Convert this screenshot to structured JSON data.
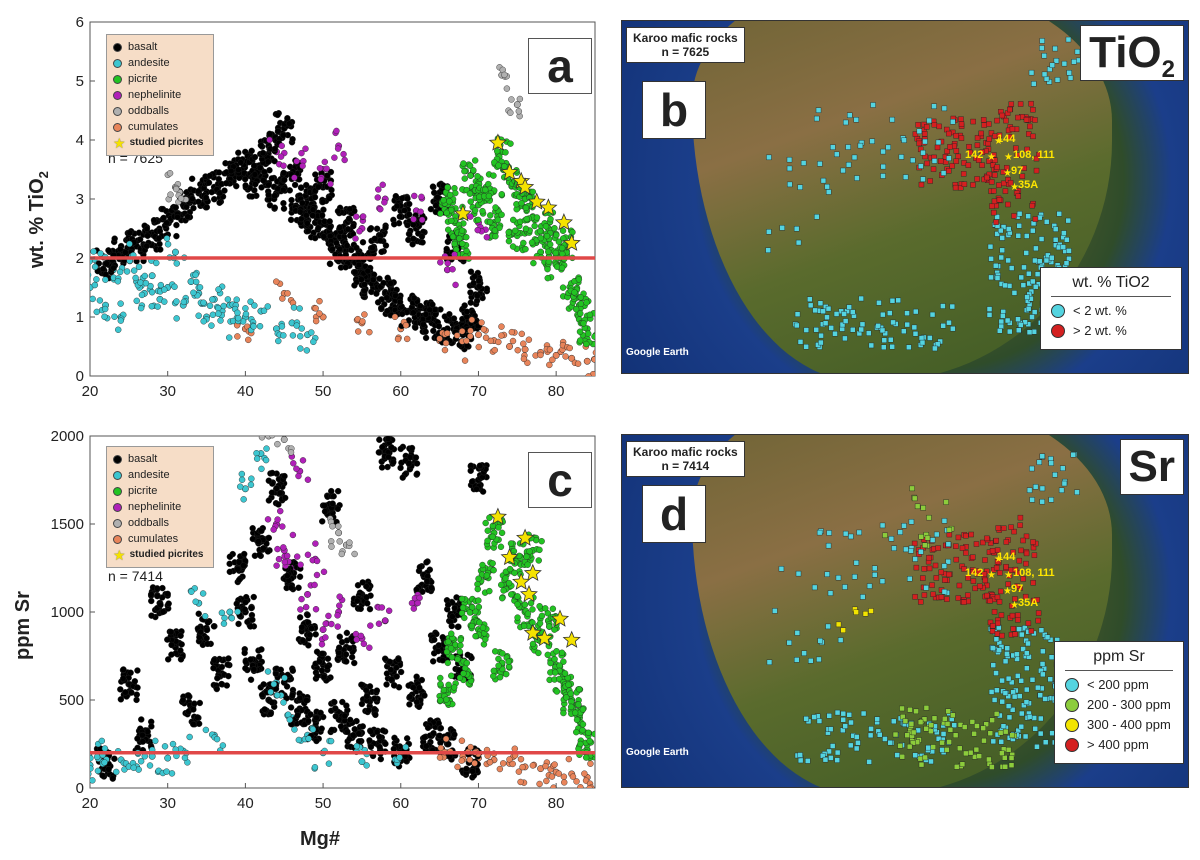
{
  "chart_data": [
    {
      "panel": "a",
      "type": "scatter",
      "xlabel": "",
      "ylabel": "wt. % TiO2",
      "xlim": [
        20,
        85
      ],
      "ylim": [
        0,
        6
      ],
      "xticks": [
        20,
        30,
        40,
        50,
        60,
        70,
        80
      ],
      "yticks": [
        0,
        1,
        2,
        3,
        4,
        5,
        6
      ],
      "reference_line_y": 2,
      "n_label": "n = 7625",
      "legend": [
        "basalt",
        "andesite",
        "picrite",
        "nephelinite",
        "oddballs",
        "cumulates",
        "studied picrites"
      ],
      "legend_placement": "top-left",
      "series": [
        {
          "name": "basalt",
          "color": "#000000",
          "x": [
            22,
            24,
            26,
            28,
            30,
            32,
            34,
            36,
            38,
            40,
            41,
            42,
            43,
            44,
            45,
            46,
            47,
            48,
            49,
            50,
            51,
            52,
            53,
            54,
            55,
            56,
            57,
            58,
            59,
            60,
            61,
            62,
            63,
            64,
            65,
            66,
            67,
            68,
            69,
            70
          ],
          "y": [
            1.9,
            2.1,
            2.2,
            2.4,
            2.6,
            2.9,
            3.1,
            3.2,
            3.4,
            3.6,
            3.3,
            3.5,
            3.9,
            3.1,
            4.2,
            3.4,
            2.8,
            3.0,
            2.6,
            3.2,
            2.4,
            2.1,
            2.6,
            2.0,
            1.8,
            1.6,
            2.3,
            1.4,
            1.2,
            2.8,
            1.1,
            2.5,
            1.0,
            0.9,
            3.0,
            0.8,
            2.2,
            0.7,
            1.0,
            1.5
          ]
        },
        {
          "name": "andesite",
          "color": "#3cc6d0",
          "x": [
            20,
            21,
            22,
            23,
            24,
            25,
            26,
            27,
            28,
            29,
            30,
            31,
            32,
            33,
            34,
            35,
            36,
            37,
            38,
            39,
            40,
            42,
            44,
            46,
            48
          ],
          "y": [
            1.5,
            1.9,
            1.2,
            1.8,
            1.0,
            2.0,
            1.6,
            1.4,
            1.7,
            1.3,
            1.5,
            2.1,
            1.2,
            1.6,
            1.4,
            1.0,
            1.3,
            1.1,
            1.2,
            0.9,
            1.0,
            1.1,
            0.8,
            0.9,
            0.7
          ]
        },
        {
          "name": "picrite",
          "color": "#22c322",
          "x": [
            66,
            67,
            68,
            69,
            70,
            71,
            72,
            73,
            74,
            75,
            76,
            77,
            78,
            79,
            80,
            81,
            82,
            83,
            84
          ],
          "y": [
            3.0,
            2.6,
            2.2,
            3.4,
            2.9,
            3.2,
            2.6,
            3.8,
            3.3,
            2.4,
            3.0,
            2.7,
            2.1,
            2.5,
            1.9,
            2.2,
            1.4,
            1.2,
            0.8
          ]
        },
        {
          "name": "nephelinite",
          "color": "#b020b8",
          "x": [
            44,
            47,
            50,
            52,
            55,
            58,
            62,
            66,
            70
          ],
          "y": [
            3.8,
            3.6,
            3.5,
            3.9,
            2.5,
            3.0,
            2.8,
            1.8,
            2.6
          ]
        },
        {
          "name": "oddballs",
          "color": "#b0b0b0",
          "x": [
            31,
            32,
            73,
            75
          ],
          "y": [
            3.2,
            3.0,
            5.1,
            4.6
          ]
        },
        {
          "name": "cumulates",
          "color": "#e8845a",
          "x": [
            40,
            45,
            50,
            55,
            60,
            65,
            68,
            70,
            72,
            74,
            76,
            78,
            80,
            82,
            84
          ],
          "y": [
            0.8,
            1.4,
            1.0,
            0.9,
            0.8,
            0.6,
            0.5,
            0.7,
            0.6,
            0.5,
            0.45,
            0.4,
            0.35,
            0.3,
            0.25
          ]
        },
        {
          "name": "studied picrites",
          "color": "#f5e200",
          "x": [
            68,
            72.5,
            74,
            75.5,
            76,
            77.5,
            79,
            81,
            82
          ],
          "y": [
            2.75,
            3.95,
            3.45,
            3.3,
            3.2,
            2.95,
            2.85,
            2.6,
            2.25
          ]
        }
      ]
    },
    {
      "panel": "c",
      "type": "scatter",
      "xlabel": "Mg#",
      "ylabel": "ppm Sr",
      "xlim": [
        20,
        85
      ],
      "ylim": [
        0,
        2000
      ],
      "xticks": [
        20,
        30,
        40,
        50,
        60,
        70,
        80
      ],
      "yticks": [
        0,
        500,
        1000,
        1500,
        2000
      ],
      "reference_line_y": 200,
      "n_label": "n = 7414",
      "legend": [
        "basalt",
        "andesite",
        "picrite",
        "nephelinite",
        "oddballs",
        "cumulates",
        "studied picrites"
      ],
      "legend_placement": "top-left",
      "series": [
        {
          "name": "basalt",
          "color": "#000000",
          "x": [
            22,
            25,
            27,
            29,
            31,
            33,
            35,
            37,
            39,
            40,
            41,
            42,
            43,
            44,
            45,
            46,
            47,
            48,
            49,
            50,
            51,
            52,
            53,
            54,
            55,
            56,
            57,
            58,
            59,
            60,
            61,
            62,
            63,
            64,
            65,
            66,
            67,
            68,
            69,
            70
          ],
          "y": [
            140,
            590,
            300,
            1050,
            800,
            450,
            900,
            650,
            1250,
            1000,
            700,
            1400,
            500,
            1700,
            600,
            1200,
            450,
            900,
            350,
            700,
            1600,
            400,
            800,
            300,
            1100,
            500,
            250,
            1900,
            650,
            200,
            1850,
            550,
            1200,
            300,
            800,
            250,
            1000,
            700,
            150,
            1750
          ]
        },
        {
          "name": "andesite",
          "color": "#3cc6d0",
          "x": [
            20,
            21,
            22,
            24,
            26,
            28,
            30,
            32,
            34,
            36,
            38,
            40,
            42,
            44,
            46,
            48,
            50,
            55,
            60
          ],
          "y": [
            130,
            210,
            140,
            160,
            120,
            180,
            170,
            210,
            1050,
            300,
            1000,
            1700,
            1900,
            600,
            400,
            300,
            200,
            150,
            170
          ]
        },
        {
          "name": "picrite",
          "color": "#22c322",
          "x": [
            66,
            67,
            68,
            69,
            70,
            71,
            72,
            73,
            74,
            75,
            76,
            77,
            78,
            79,
            80,
            81,
            82,
            83,
            84
          ],
          "y": [
            550,
            800,
            650,
            1000,
            900,
            1200,
            1450,
            700,
            1150,
            1300,
            1000,
            1350,
            850,
            950,
            700,
            600,
            500,
            400,
            250
          ]
        },
        {
          "name": "nephelinite",
          "color": "#b020b8",
          "x": [
            44,
            45,
            46,
            47,
            48,
            49,
            50,
            52,
            55,
            58,
            62
          ],
          "y": [
            1500,
            1350,
            1250,
            1800,
            1100,
            1300,
            900,
            1000,
            850,
            950,
            1050
          ]
        },
        {
          "name": "oddballs",
          "color": "#b0b0b0",
          "x": [
            43,
            45,
            52,
            53
          ],
          "y": [
            2000,
            1980,
            1450,
            1380
          ]
        },
        {
          "name": "cumulates",
          "color": "#e8845a",
          "x": [
            66,
            68,
            70,
            72,
            74,
            76,
            78,
            80,
            82,
            84
          ],
          "y": [
            200,
            180,
            170,
            160,
            140,
            120,
            110,
            90,
            80,
            60
          ]
        },
        {
          "name": "studied picrites",
          "color": "#f5e200",
          "x": [
            72.5,
            74,
            76,
            76.5,
            77,
            75.5,
            77,
            78.5,
            80.5,
            82
          ],
          "y": [
            1540,
            1310,
            1420,
            1100,
            1220,
            1170,
            880,
            850,
            960,
            840
          ]
        }
      ]
    }
  ],
  "panels": {
    "a": {
      "letter": "a",
      "n_label": "n = 7625",
      "ylabel": "wt. % TiO2",
      "ylabel_main": "wt. % TiO",
      "ylabel_sub": "2"
    },
    "c": {
      "letter": "c",
      "n_label": "n = 7414",
      "ylabel": "ppm Sr",
      "xlabel": "Mg#"
    }
  },
  "scatter_legend": {
    "items": [
      {
        "label": "basalt",
        "color": "#000000"
      },
      {
        "label": "andesite",
        "color": "#3cc6d0"
      },
      {
        "label": "picrite",
        "color": "#22c322"
      },
      {
        "label": "nephelinite",
        "color": "#b020b8"
      },
      {
        "label": "oddballs",
        "color": "#b0b0b0"
      },
      {
        "label": "cumulates",
        "color": "#e8845a"
      }
    ],
    "star_label": "studied picrites",
    "star_color": "#f5e200"
  },
  "map_b": {
    "letter": "b",
    "title_line1": "Karoo mafic rocks",
    "title_line2": "n = 7625",
    "element_main": "TiO",
    "element_sub": "2",
    "legend_title": "wt. % TiO2",
    "legend_items": [
      {
        "label": "< 2 wt. %",
        "color": "#54d4e0"
      },
      {
        "label": "> 2 wt. %",
        "color": "#d42020"
      }
    ],
    "sites": [
      "142",
      "144",
      "108, 111",
      "97",
      "35A"
    ],
    "attribution": "Google Earth"
  },
  "map_d": {
    "letter": "d",
    "title_line1": "Karoo mafic rocks",
    "title_line2": "n = 7414",
    "element_main": "Sr",
    "legend_title": "ppm Sr",
    "legend_items": [
      {
        "label": "< 200 ppm",
        "color": "#54d4e0"
      },
      {
        "label": "200 - 300 ppm",
        "color": "#8ccc3c"
      },
      {
        "label": "300 - 400 ppm",
        "color": "#f2e400"
      },
      {
        "label": "> 400 ppm",
        "color": "#d42020"
      }
    ],
    "sites": [
      "142",
      "144",
      "108, 111",
      "97",
      "35A"
    ],
    "attribution": "Google Earth"
  },
  "colors": {
    "reference_line": "#e04848",
    "legend_bg": "#f6ddc7"
  }
}
